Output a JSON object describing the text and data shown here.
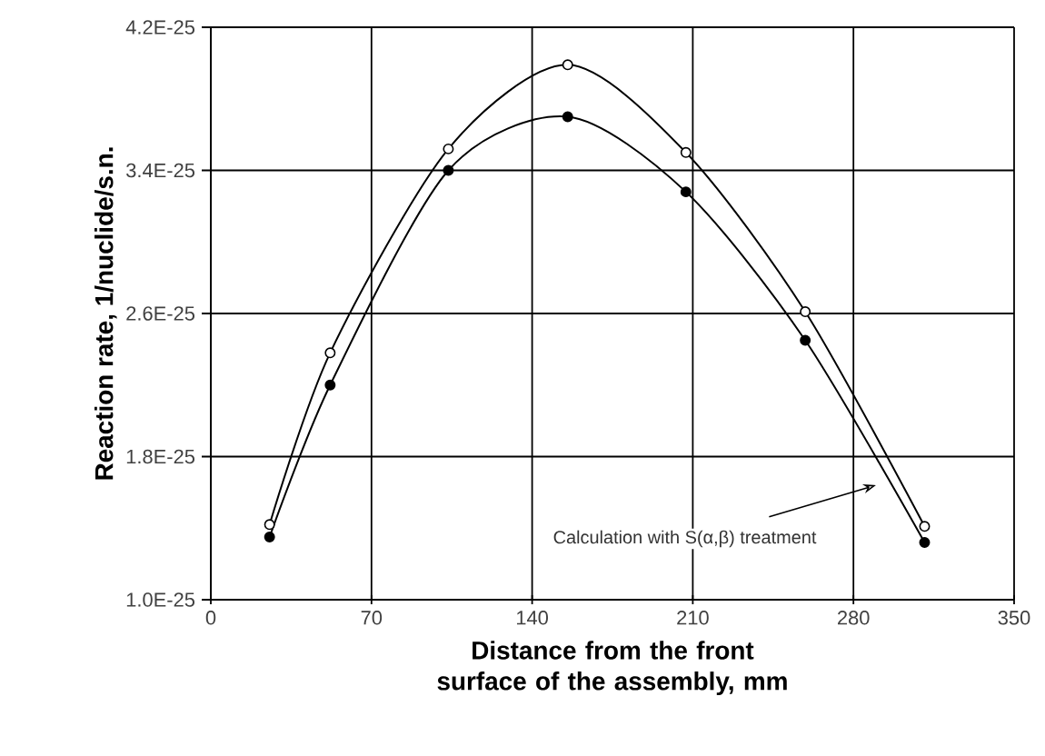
{
  "chart_data": {
    "type": "line",
    "xlabel": "Distance from the front surface of the assembly, mm",
    "ylabel": "Reaction rate, 1/nuclide/s.n.",
    "x": [
      25.6,
      52,
      103.5,
      155.5,
      207,
      259,
      311
    ],
    "series": [
      {
        "color": "#000000",
        "values": [
          1.42e-25,
          2.38e-25,
          3.52e-25,
          3.99e-25,
          3.5e-25,
          2.61e-25,
          1.41e-25
        ]
      },
      {
        "color": "#000000",
        "values": [
          1.35e-25,
          2.2e-25,
          3.4e-25,
          3.7e-25,
          3.28e-25,
          2.45e-25,
          1.32e-25
        ]
      }
    ],
    "xlim": [
      0,
      350
    ],
    "xticks": [
      0,
      70,
      140,
      210,
      280,
      350
    ],
    "ylim": [
      1e-25,
      4.2e-25
    ],
    "yticks": [
      {
        "value": 1e-25,
        "label": "1.0E-25"
      },
      {
        "value": 1.8e-25,
        "label": "1.8E-25"
      },
      {
        "value": 2.6e-25,
        "label": "2.6E-25"
      },
      {
        "value": 3.4e-25,
        "label": "3.4E-25"
      },
      {
        "value": 4.2e-25,
        "label": "4.2E-25"
      }
    ],
    "grid": true,
    "marker": "circle",
    "line_style": "solid",
    "annotations": [
      "Calculation with S(α,β) treatment"
    ]
  }
}
